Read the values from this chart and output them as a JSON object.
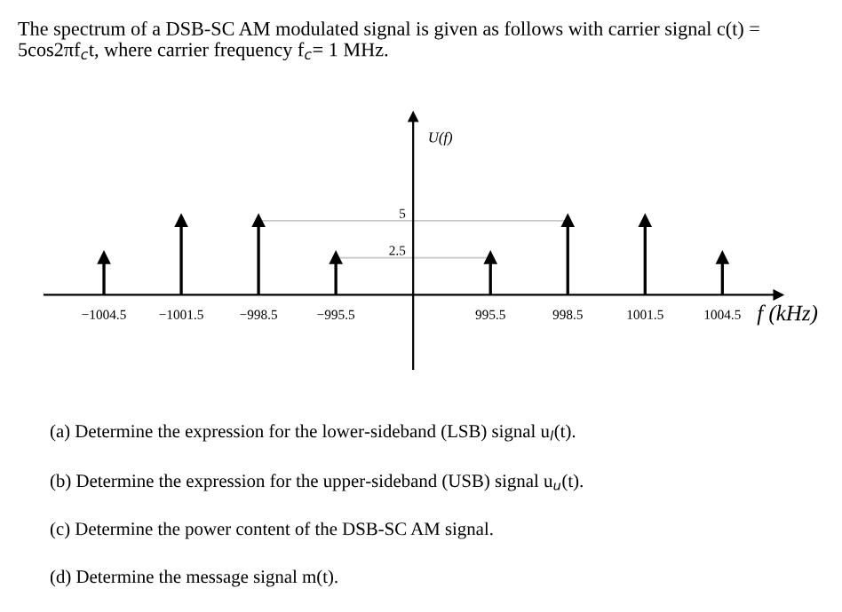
{
  "chart_data": {
    "type": "lollipop",
    "title": "The spectrum of a DSB-SC AM modulated signal is given as follows with carrier signal c(t) = 5cos2πf$_{c}$t, where carrier frequency f$_{c}$= 1 MHz.",
    "xlabel": "f (kHz)",
    "ylabel": "U(f)",
    "categories": [
      "−1004.5",
      "−1001.5",
      "−998.5",
      "−995.5",
      null,
      "995.5",
      "998.5",
      "1001.5",
      "1004.5"
    ],
    "values": [
      2.5,
      5,
      5,
      2.5,
      null,
      2.5,
      5,
      5,
      2.5
    ],
    "color": "#000000",
    "marker": "triangle",
    "ylim": [
      -5,
      12
    ],
    "yticks": [
      2.5,
      5
    ],
    "ref_lines": [
      {
        "axis": "y",
        "value": 5,
        "color": "#c8c8c8"
      },
      {
        "axis": "y",
        "value": 2.5,
        "color": "#c8c8c8"
      }
    ],
    "annotations": [
      "(a) Determine the expression for the lower-sideband (LSB) signal u$_{l}$(t).",
      "(b) Determine the expression for the upper-sideband (USB) signal u$_{u}$(t).",
      "(c) Determine the power content of the DSB-SC AM signal.",
      "(d) Determine the message signal m(t)."
    ]
  }
}
